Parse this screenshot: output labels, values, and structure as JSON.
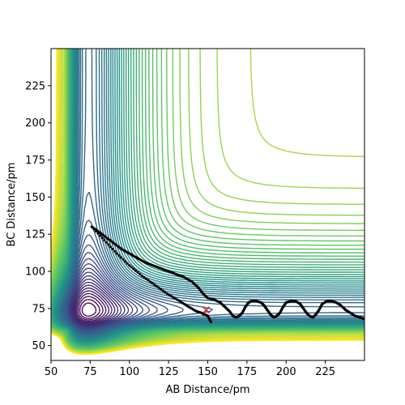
{
  "chart_data": {
    "type": "contour",
    "xlabel": "AB Distance/pm",
    "ylabel": "BC Distance/pm",
    "xlim": [
      50,
      250
    ],
    "ylim": [
      40,
      250
    ],
    "xticks": [
      50,
      75,
      100,
      125,
      150,
      175,
      200,
      225
    ],
    "yticks": [
      50,
      75,
      100,
      125,
      150,
      175,
      200,
      225
    ],
    "grid": false,
    "colormap": [
      "#440154",
      "#3b528b",
      "#21918c",
      "#5ec962",
      "#fde725"
    ],
    "contour_levels": 60,
    "trajectory": {
      "color": "#000000",
      "points": [
        [
          76,
          130
        ],
        [
          80,
          127
        ],
        [
          85,
          123
        ],
        [
          90,
          119
        ],
        [
          95,
          115
        ],
        [
          100,
          112
        ],
        [
          105,
          109
        ],
        [
          110,
          106
        ],
        [
          115,
          104
        ],
        [
          120,
          102
        ],
        [
          125,
          100
        ],
        [
          130,
          98
        ],
        [
          135,
          96
        ],
        [
          140,
          93
        ],
        [
          144,
          89
        ],
        [
          147,
          85
        ],
        [
          150,
          82
        ],
        [
          154,
          81
        ],
        [
          158,
          79
        ],
        [
          161,
          76
        ],
        [
          164,
          73
        ],
        [
          166,
          70
        ],
        [
          168,
          69
        ],
        [
          170,
          70
        ],
        [
          172,
          72
        ],
        [
          174,
          76
        ],
        [
          176,
          79
        ],
        [
          178,
          80
        ],
        [
          181,
          80
        ],
        [
          184,
          79
        ],
        [
          186,
          77
        ],
        [
          188,
          74
        ],
        [
          190,
          71
        ],
        [
          192,
          69
        ],
        [
          194,
          70
        ],
        [
          196,
          72
        ],
        [
          198,
          76
        ],
        [
          200,
          79
        ],
        [
          203,
          80
        ],
        [
          206,
          80
        ],
        [
          209,
          78
        ],
        [
          211,
          75
        ],
        [
          213,
          72
        ],
        [
          215,
          70
        ],
        [
          217,
          69
        ],
        [
          219,
          71
        ],
        [
          221,
          74
        ],
        [
          223,
          78
        ],
        [
          226,
          80
        ],
        [
          229,
          80
        ],
        [
          232,
          79
        ],
        [
          235,
          77
        ],
        [
          238,
          74
        ],
        [
          241,
          72
        ],
        [
          244,
          70
        ],
        [
          247,
          69
        ],
        [
          250,
          68
        ]
      ],
      "return_points": [
        [
          76,
          130
        ],
        [
          84,
          121
        ],
        [
          92,
          112
        ],
        [
          100,
          104
        ],
        [
          108,
          97
        ],
        [
          116,
          91
        ],
        [
          124,
          85
        ],
        [
          132,
          80
        ],
        [
          138,
          76
        ],
        [
          143,
          73
        ],
        [
          146,
          72
        ],
        [
          148,
          71
        ],
        [
          150,
          70
        ],
        [
          152,
          66
        ]
      ]
    },
    "marker": {
      "symbol": "x",
      "color": "#d62728",
      "x": 149,
      "y": 74
    }
  }
}
